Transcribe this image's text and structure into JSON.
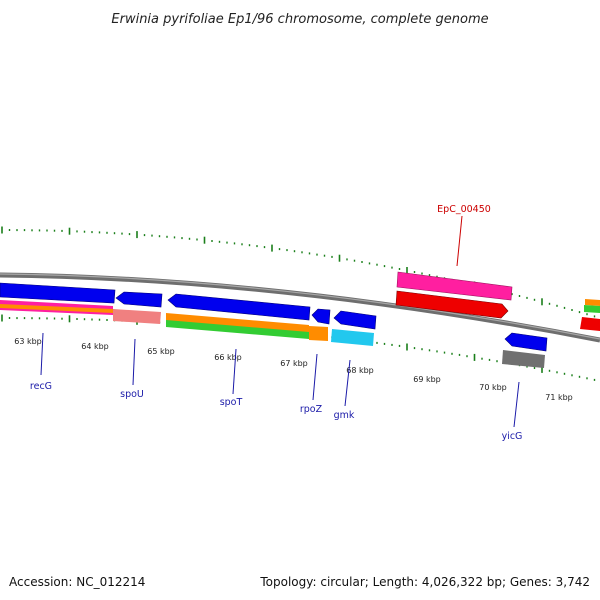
{
  "title": "Erwinia pyrifoliae Ep1/96 chromosome, complete genome",
  "footer": {
    "accession": "Accession: NC_012214",
    "summary": "Topology: circular; Length: 4,026,322 bp; Genes: 3,742"
  },
  "kbp_ticks": [
    "63 kbp",
    "64 kbp",
    "65 kbp",
    "66 kbp",
    "67 kbp",
    "68 kbp",
    "69 kbp",
    "70 kbp",
    "71 kbp"
  ],
  "gene_labels": [
    {
      "name": "recG",
      "color": "#1a1aa8"
    },
    {
      "name": "spoU",
      "color": "#1a1aa8"
    },
    {
      "name": "spoT",
      "color": "#1a1aa8"
    },
    {
      "name": "rpoZ",
      "color": "#1a1aa8"
    },
    {
      "name": "gmk",
      "color": "#1a1aa8"
    },
    {
      "name": "yicG",
      "color": "#1a1aa8"
    },
    {
      "name": "EpC_00450",
      "color": "#cc0000"
    }
  ],
  "colors": {
    "backbone": "#808080",
    "forward_cds": "#0000ee",
    "reverse_cds": "#ee0000",
    "pink": "#ff1fa0",
    "orange": "#ff8c00",
    "green": "#33cc33",
    "cyan": "#22c8ee",
    "gray": "#707070",
    "salmon": "#f08080",
    "tick_green": "#1a7f1a"
  }
}
